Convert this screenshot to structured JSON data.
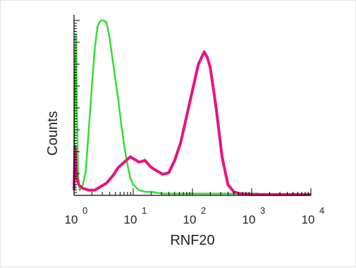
{
  "chart_data": {
    "type": "area",
    "xlabel": "RNF20",
    "ylabel": "Counts",
    "xscale": "log",
    "xlim": [
      1,
      10000
    ],
    "ylim": [
      0,
      100
    ],
    "xticks": [
      {
        "base": "10",
        "exp": "0",
        "value": 1
      },
      {
        "base": "10",
        "exp": "1",
        "value": 10
      },
      {
        "base": "10",
        "exp": "2",
        "value": 100
      },
      {
        "base": "10",
        "exp": "3",
        "value": 1000
      },
      {
        "base": "10",
        "exp": "4",
        "value": 10000
      }
    ],
    "series": [
      {
        "color": "#33dd33",
        "points": [
          [
            1.0,
            4
          ],
          [
            1.04,
            60
          ],
          [
            1.08,
            92
          ],
          [
            1.12,
            50
          ],
          [
            1.17,
            12
          ],
          [
            1.25,
            3
          ],
          [
            1.41,
            6
          ],
          [
            1.58,
            14
          ],
          [
            1.78,
            38
          ],
          [
            2.0,
            62
          ],
          [
            2.24,
            84
          ],
          [
            2.51,
            97
          ],
          [
            2.82,
            100
          ],
          [
            3.16,
            100
          ],
          [
            3.55,
            99
          ],
          [
            3.98,
            90
          ],
          [
            4.47,
            78
          ],
          [
            5.01,
            66
          ],
          [
            5.62,
            54
          ],
          [
            6.31,
            40
          ],
          [
            7.08,
            28
          ],
          [
            7.94,
            18
          ],
          [
            8.91,
            10
          ],
          [
            10.0,
            6
          ],
          [
            12.6,
            3
          ],
          [
            15.8,
            2
          ],
          [
            20.0,
            2
          ],
          [
            31.6,
            1
          ],
          [
            50.1,
            1
          ],
          [
            100,
            1
          ],
          [
            200,
            1
          ],
          [
            400,
            1
          ],
          [
            700,
            1
          ],
          [
            1000,
            1
          ],
          [
            1300,
            1
          ]
        ]
      },
      {
        "color": "#e8137f",
        "points": [
          [
            1.0,
            3
          ],
          [
            1.04,
            28
          ],
          [
            1.08,
            18
          ],
          [
            1.12,
            10
          ],
          [
            1.2,
            6
          ],
          [
            1.41,
            4
          ],
          [
            1.78,
            3
          ],
          [
            2.24,
            3
          ],
          [
            2.82,
            5
          ],
          [
            3.55,
            7
          ],
          [
            4.47,
            11
          ],
          [
            5.62,
            16
          ],
          [
            7.08,
            19
          ],
          [
            8.91,
            22
          ],
          [
            10.0,
            21
          ],
          [
            12.6,
            19
          ],
          [
            15.8,
            20
          ],
          [
            20.0,
            16
          ],
          [
            25.1,
            14
          ],
          [
            31.6,
            12
          ],
          [
            39.8,
            13
          ],
          [
            50.1,
            20
          ],
          [
            63.1,
            30
          ],
          [
            79.4,
            45
          ],
          [
            100,
            60
          ],
          [
            126,
            75
          ],
          [
            158,
            82
          ],
          [
            178,
            79
          ],
          [
            200,
            73
          ],
          [
            251,
            50
          ],
          [
            316,
            22
          ],
          [
            398,
            6
          ],
          [
            501,
            2
          ],
          [
            631,
            1
          ],
          [
            1000,
            0.5
          ],
          [
            10000,
            0.5
          ]
        ]
      }
    ]
  }
}
